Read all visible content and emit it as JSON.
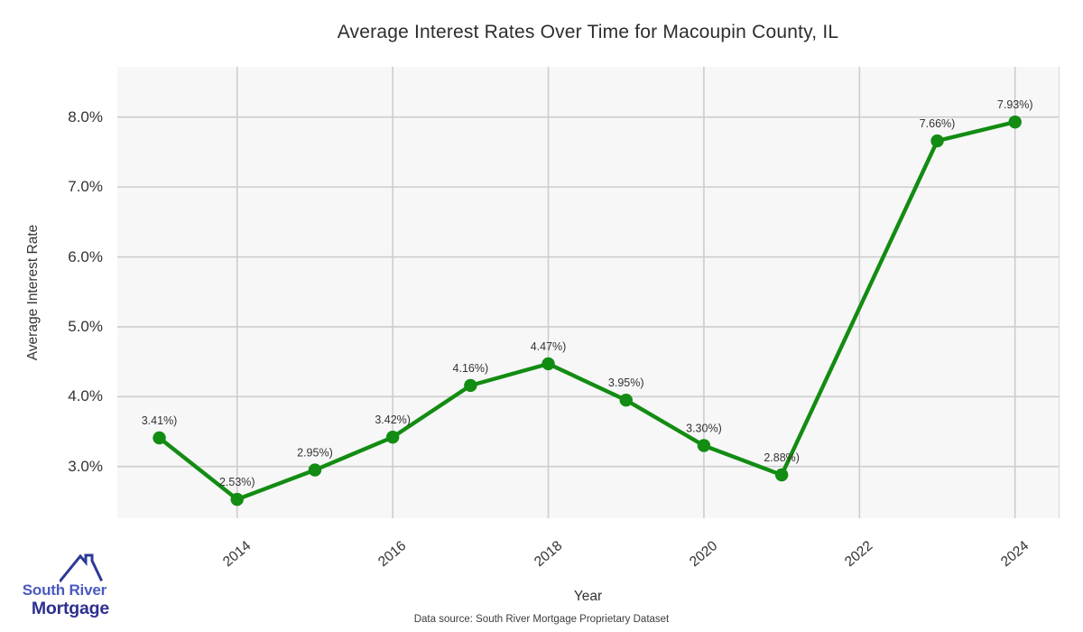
{
  "title": "Average Interest Rates Over Time for Macoupin County, IL",
  "footer": {
    "source_text": "Data source: South River Mortgage Proprietary Dataset"
  },
  "logo": {
    "line1": "South River",
    "line2": "Mortgage",
    "icon": "house-roof-icon",
    "line1_color": "#4a5abf",
    "line2_color": "#2d2f8f",
    "roof_color": "#2c3a96"
  },
  "colors": {
    "line_green": "#128c12",
    "plot_background": "#f7f7f7",
    "gridline": "#cdcdcd",
    "text": "#333333"
  },
  "chart_data": {
    "type": "line",
    "title": "Average Interest Rates Over Time for Macoupin County, IL",
    "xlabel": "Year",
    "ylabel": "Average Interest Rate",
    "x": [
      2013,
      2014,
      2015,
      2016,
      2017,
      2018,
      2019,
      2020,
      2021,
      2023,
      2024
    ],
    "values": [
      3.41,
      2.53,
      2.95,
      3.42,
      4.16,
      4.47,
      3.95,
      3.3,
      2.88,
      7.66,
      7.93
    ],
    "point_labels": [
      "3.41%)",
      "2.53%)",
      "2.95%)",
      "3.42%)",
      "4.16%)",
      "4.47%)",
      "3.95%)",
      "3.30%)",
      "2.88%)",
      "7.66%)",
      "7.93%)"
    ],
    "xticks": [
      2014,
      2016,
      2018,
      2020,
      2022,
      2024
    ],
    "xtick_labels": [
      "2014",
      "2016",
      "2018",
      "2020",
      "2022",
      "2024"
    ],
    "yticks": [
      3,
      4,
      5,
      6,
      7,
      8
    ],
    "ytick_labels": [
      "3.0%",
      "4.0%",
      "5.0%",
      "6.0%",
      "7.0%",
      "8.0%"
    ],
    "xlim": [
      2012.46,
      2024.56
    ],
    "ylim": [
      2.26,
      8.72
    ],
    "grid": true,
    "legend_position": "none",
    "line_color": "#128c12",
    "marker": "circle"
  }
}
